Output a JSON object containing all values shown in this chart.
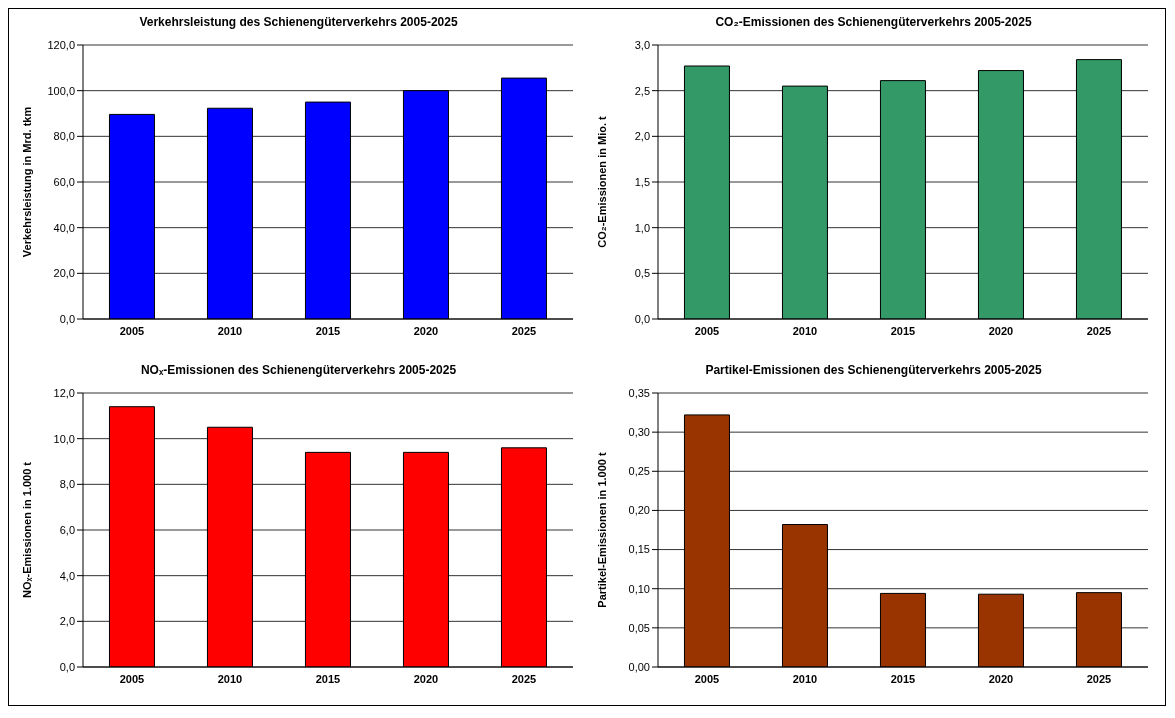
{
  "chart_data": [
    {
      "type": "bar",
      "title": "Verkehrsleistung des Schienengüterverkehrs 2005-2025",
      "ylabel": "Verkehrsleistung in Mrd. tkm",
      "categories": [
        "2005",
        "2010",
        "2015",
        "2020",
        "2025"
      ],
      "values": [
        89.6,
        92.3,
        95.0,
        100.0,
        105.5
      ],
      "color": "#0000ff",
      "ylim": [
        0,
        120
      ],
      "yticks": [
        {
          "value": 0,
          "label": "0,0"
        },
        {
          "value": 20,
          "label": "20,0"
        },
        {
          "value": 40,
          "label": "40,0"
        },
        {
          "value": 60,
          "label": "60,0"
        },
        {
          "value": 80,
          "label": "80,0"
        },
        {
          "value": 100,
          "label": "100,0"
        },
        {
          "value": 120,
          "label": "120,0"
        }
      ],
      "grid": "y"
    },
    {
      "type": "bar",
      "title": "CO₂-Emissionen des Schienengüterverkehrs 2005-2025",
      "ylabel": "CO₂-Emissionen in Mio. t",
      "categories": [
        "2005",
        "2010",
        "2015",
        "2020",
        "2025"
      ],
      "values": [
        2.77,
        2.55,
        2.61,
        2.72,
        2.84
      ],
      "color": "#339966",
      "ylim": [
        0,
        3
      ],
      "yticks": [
        {
          "value": 0,
          "label": "0,0"
        },
        {
          "value": 0.5,
          "label": "0,5"
        },
        {
          "value": 1,
          "label": "1,0"
        },
        {
          "value": 1.5,
          "label": "1,5"
        },
        {
          "value": 2,
          "label": "2,0"
        },
        {
          "value": 2.5,
          "label": "2,5"
        },
        {
          "value": 3,
          "label": "3,0"
        }
      ],
      "grid": "y"
    },
    {
      "type": "bar",
      "title": "NOₓ-Emissionen des Schienengüterverkehrs 2005-2025",
      "ylabel": "NOₓ-Emissionen in 1.000 t",
      "categories": [
        "2005",
        "2010",
        "2015",
        "2020",
        "2025"
      ],
      "values": [
        11.4,
        10.5,
        9.4,
        9.4,
        9.6
      ],
      "color": "#ff0000",
      "ylim": [
        0,
        12
      ],
      "yticks": [
        {
          "value": 0,
          "label": "0,0"
        },
        {
          "value": 2,
          "label": "2,0"
        },
        {
          "value": 4,
          "label": "4,0"
        },
        {
          "value": 6,
          "label": "6,0"
        },
        {
          "value": 8,
          "label": "8,0"
        },
        {
          "value": 10,
          "label": "10,0"
        },
        {
          "value": 12,
          "label": "12,0"
        }
      ],
      "grid": "y"
    },
    {
      "type": "bar",
      "title": "Partikel-Emissionen des Schienengüterverkehrs 2005-2025",
      "ylabel": "Partikel-Emissionen in 1.000 t",
      "categories": [
        "2005",
        "2010",
        "2015",
        "2020",
        "2025"
      ],
      "values": [
        0.322,
        0.182,
        0.094,
        0.093,
        0.095
      ],
      "color": "#993300",
      "ylim": [
        0,
        0.35
      ],
      "yticks": [
        {
          "value": 0,
          "label": "0,00"
        },
        {
          "value": 0.05,
          "label": "0,05"
        },
        {
          "value": 0.1,
          "label": "0,10"
        },
        {
          "value": 0.15,
          "label": "0,15"
        },
        {
          "value": 0.2,
          "label": "0,20"
        },
        {
          "value": 0.25,
          "label": "0,25"
        },
        {
          "value": 0.3,
          "label": "0,30"
        },
        {
          "value": 0.35,
          "label": "0,35"
        }
      ],
      "grid": "y"
    }
  ]
}
